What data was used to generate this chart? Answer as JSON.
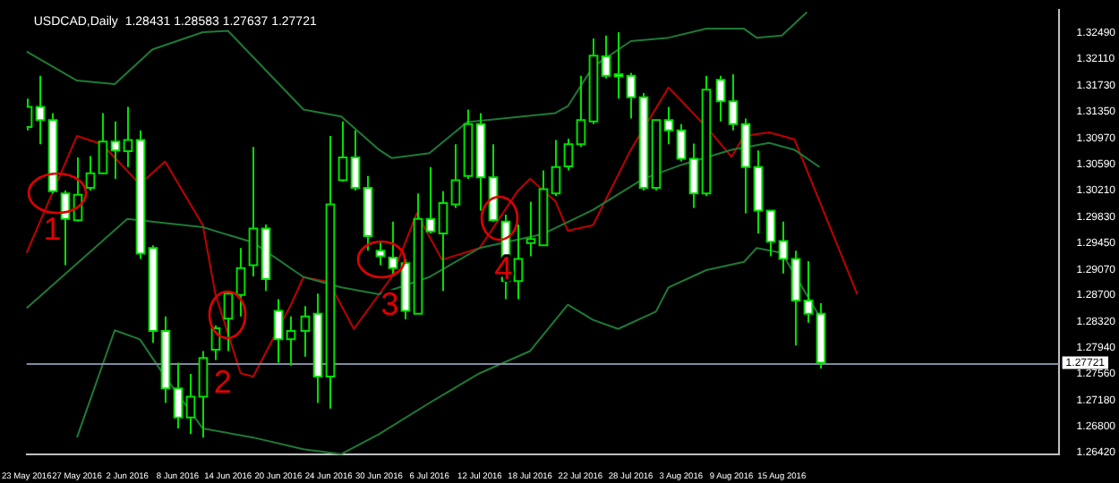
{
  "chart_data": {
    "type": "candlestick",
    "title": "USDCAD,Daily  1.28431 1.28583 1.27637 1.27721",
    "color": "#00e000",
    "categories": [
      "23 May 2016",
      null,
      null,
      null,
      "27 May 2016",
      null,
      null,
      null,
      "2 Jun 2016",
      null,
      null,
      null,
      "8 Jun 2016",
      null,
      null,
      null,
      "14 Jun 2016",
      null,
      null,
      null,
      "20 Jun 2016",
      null,
      null,
      null,
      "24 Jun 2016",
      null,
      null,
      null,
      "30 Jun 2016",
      null,
      null,
      null,
      "6 Jul 2016",
      null,
      null,
      null,
      "12 Jul 2016",
      null,
      null,
      null,
      "18 Jul 2016",
      null,
      null,
      null,
      "22 Jul 2016",
      null,
      null,
      null,
      "28 Jul 2016",
      null,
      null,
      null,
      "3 Aug 2016",
      null,
      null,
      null,
      "9 Aug 2016",
      null,
      null,
      null,
      "15 Aug 2016",
      null,
      null,
      null,
      null,
      null,
      null,
      null,
      null,
      null,
      null,
      null,
      null,
      null,
      null,
      null,
      null,
      null,
      null,
      null,
      null,
      null,
      null
    ],
    "ohlc": [
      [
        1.3113,
        1.3154,
        1.3108,
        1.3142
      ],
      [
        1.3142,
        1.3187,
        1.3088,
        1.3123
      ],
      [
        1.3123,
        1.3133,
        1.3017,
        1.302
      ],
      [
        1.3017,
        1.3021,
        1.2913,
        1.298
      ],
      [
        1.2978,
        1.3069,
        1.2976,
        1.3015
      ],
      [
        1.3025,
        1.3071,
        1.3021,
        1.3046
      ],
      [
        1.3046,
        1.3133,
        1.3045,
        1.3092
      ],
      [
        1.3092,
        1.3121,
        1.3038,
        1.3079
      ],
      [
        1.3078,
        1.3142,
        1.3055,
        1.3094
      ],
      [
        1.3094,
        1.3108,
        1.2922,
        1.293
      ],
      [
        1.2938,
        1.2942,
        1.2801,
        1.2818
      ],
      [
        1.2818,
        1.2839,
        1.2714,
        1.2735
      ],
      [
        1.2735,
        1.2772,
        1.2677,
        1.2693
      ],
      [
        1.2693,
        1.2756,
        1.2669,
        1.2723
      ],
      [
        1.2723,
        1.2789,
        1.2664,
        1.2779
      ],
      [
        1.2791,
        1.2826,
        1.2776,
        1.2822
      ],
      [
        1.2836,
        1.2876,
        1.2789,
        1.2872
      ],
      [
        1.287,
        1.2938,
        1.2839,
        1.2909
      ],
      [
        1.2913,
        1.3084,
        1.2897,
        1.2966
      ],
      [
        1.2966,
        1.2972,
        1.2876,
        1.2893
      ],
      [
        1.2847,
        1.2864,
        1.2772,
        1.2806
      ],
      [
        1.2806,
        1.2839,
        1.2768,
        1.2818
      ],
      [
        1.2818,
        1.2854,
        1.2781,
        1.2839
      ],
      [
        1.2843,
        1.2872,
        1.2714,
        1.2752
      ],
      [
        1.2752,
        1.31,
        1.2706,
        1.3001
      ],
      [
        1.3036,
        1.3121,
        1.3034,
        1.3069
      ],
      [
        1.3069,
        1.3108,
        1.3021,
        1.3025
      ],
      [
        1.3025,
        1.3042,
        1.2934,
        1.2955
      ],
      [
        1.2934,
        1.2947,
        1.2913,
        1.2926
      ],
      [
        1.2924,
        1.2976,
        1.2897,
        1.2909
      ],
      [
        1.2916,
        1.2922,
        1.2835,
        1.2847
      ],
      [
        1.2843,
        1.3017,
        1.2843,
        1.298
      ],
      [
        1.298,
        1.3055,
        1.2959,
        1.2962
      ],
      [
        1.2959,
        1.302,
        1.2876,
        1.3003
      ],
      [
        1.3001,
        1.3088,
        1.2996,
        1.3036
      ],
      [
        1.3042,
        1.3138,
        1.3038,
        1.3117
      ],
      [
        1.3117,
        1.3133,
        1.2992,
        1.304
      ],
      [
        1.304,
        1.3088,
        1.2976,
        1.2978
      ],
      [
        1.2976,
        1.2986,
        1.2864,
        1.289
      ],
      [
        1.289,
        1.2972,
        1.2864,
        1.2922
      ],
      [
        1.2945,
        1.3005,
        1.2926,
        1.2951
      ],
      [
        1.2942,
        1.305,
        1.2942,
        1.3023
      ],
      [
        1.3017,
        1.3094,
        1.3013,
        1.3055
      ],
      [
        1.3056,
        1.3096,
        1.305,
        1.3088
      ],
      [
        1.3088,
        1.3187,
        1.3084,
        1.3123
      ],
      [
        1.3121,
        1.3241,
        1.3117,
        1.3216
      ],
      [
        1.3215,
        1.3245,
        1.3183,
        1.3187
      ],
      [
        1.3189,
        1.325,
        1.3154,
        1.3186
      ],
      [
        1.3187,
        1.3191,
        1.3125,
        1.3156
      ],
      [
        1.3156,
        1.3162,
        1.3021,
        1.3025
      ],
      [
        1.3025,
        1.3123,
        1.3021,
        1.3123
      ],
      [
        1.3123,
        1.3142,
        1.3088,
        1.3108
      ],
      [
        1.3108,
        1.3117,
        1.3063,
        1.3067
      ],
      [
        1.3067,
        1.3089,
        1.2996,
        1.3017
      ],
      [
        1.3017,
        1.3187,
        1.3013,
        1.3167
      ],
      [
        1.3181,
        1.3187,
        1.3121,
        1.315
      ],
      [
        1.315,
        1.3189,
        1.3108,
        1.3117
      ],
      [
        1.3117,
        1.3125,
        1.2988,
        1.3055
      ],
      [
        1.3055,
        1.3079,
        1.2959,
        1.2992
      ],
      [
        1.2992,
        1.2992,
        1.2926,
        1.2947
      ],
      [
        1.2948,
        1.2976,
        1.2901,
        1.2922
      ],
      [
        1.2922,
        1.2934,
        1.2797,
        1.2862
      ],
      [
        1.2862,
        1.2919,
        1.283,
        1.2843
      ],
      [
        1.28431,
        1.28583,
        1.27637,
        1.27721
      ],
      null,
      null,
      null,
      null,
      null,
      null,
      null,
      null,
      null,
      null,
      null,
      null,
      null,
      null,
      null,
      null,
      null,
      null,
      null
    ],
    "colors": [
      "#000000",
      "#ffffff",
      "#ffffff",
      "#ffffff",
      "#000000",
      "#000000",
      "#000000",
      "#ffffff",
      "#000000",
      "#ffffff",
      "#ffffff",
      "#ffffff",
      "#ffffff",
      "#000000",
      "#000000",
      "#000000",
      "#000000",
      "#000000",
      "#000000",
      "#ffffff",
      "#ffffff",
      "#000000",
      "#000000",
      "#ffffff",
      "#000000",
      "#000000",
      "#ffffff",
      "#ffffff",
      "#ffffff",
      "#ffffff",
      "#ffffff",
      "#000000",
      "#ffffff",
      "#000000",
      "#000000",
      "#000000",
      "#ffffff",
      "#ffffff",
      "#ffffff",
      "#000000",
      "#000000",
      "#000000",
      "#000000",
      "#000000",
      "#000000",
      "#000000",
      "#ffffff",
      "#ffffff",
      "#ffffff",
      "#ffffff",
      "#000000",
      "#ffffff",
      "#ffffff",
      "#ffffff",
      "#000000",
      "#ffffff",
      "#ffffff",
      "#ffffff",
      "#ffffff",
      "#ffffff",
      "#ffffff",
      "#ffffff",
      "#ffffff",
      "#ffffff",
      null,
      null,
      null,
      null,
      null,
      null,
      null,
      null,
      null,
      null,
      null,
      null,
      null,
      null,
      null,
      null,
      null,
      null,
      null
    ],
    "series": [
      {
        "type": "line",
        "color": "#1e7a36",
        "values": [
          1.3222,
          null,
          null,
          null,
          1.318,
          null,
          null,
          1.3175,
          null,
          null,
          1.3225,
          null,
          null,
          null,
          1.325,
          null,
          1.3252,
          null,
          null,
          1.3195,
          null,
          null,
          1.3138,
          null,
          null,
          1.3128,
          null,
          null,
          1.308,
          1.3068,
          null,
          null,
          1.3075,
          null,
          null,
          1.312,
          null,
          null,
          null,
          null,
          null,
          null,
          1.3133,
          1.3143,
          null,
          1.32,
          null,
          null,
          1.3237,
          null,
          null,
          1.3242,
          null,
          null,
          1.3255,
          null,
          null,
          1.3255,
          1.3242,
          null,
          1.3245,
          null,
          1.3279,
          null,
          null,
          null,
          null,
          null,
          null,
          null,
          null,
          null,
          null,
          null,
          null,
          null,
          null,
          null,
          null,
          null,
          null,
          null,
          null
        ]
      },
      {
        "type": "line",
        "color": "#1e7a36",
        "values": [
          1.2851,
          null,
          null,
          null,
          null,
          null,
          null,
          null,
          1.298,
          null,
          null,
          null,
          null,
          null,
          1.2968,
          null,
          null,
          null,
          1.2946,
          null,
          null,
          null,
          1.2896,
          null,
          null,
          1.2881,
          null,
          null,
          1.2871,
          null,
          null,
          null,
          1.2896,
          null,
          null,
          null,
          1.2938,
          null,
          null,
          null,
          null,
          1.2958,
          null,
          null,
          null,
          1.2993,
          null,
          null,
          null,
          1.3038,
          null,
          null,
          1.3058,
          null,
          null,
          null,
          1.308,
          null,
          null,
          1.309,
          null,
          1.308,
          null,
          1.3055,
          null,
          null,
          null,
          null,
          null,
          null,
          null,
          null,
          null,
          null,
          null,
          null,
          null,
          null,
          null,
          null,
          null,
          null,
          null
        ]
      },
      {
        "type": "line",
        "color": "#1e7a36",
        "values": [
          null,
          null,
          null,
          null,
          1.2664,
          null,
          null,
          1.2819,
          null,
          1.2806,
          null,
          1.2752,
          null,
          null,
          1.2677,
          null,
          null,
          null,
          1.2664,
          null,
          null,
          null,
          1.2647,
          null,
          null,
          1.264,
          null,
          null,
          1.2669,
          null,
          null,
          null,
          1.2714,
          null,
          null,
          null,
          1.2757,
          null,
          null,
          null,
          1.2789,
          null,
          null,
          1.2856,
          null,
          1.2834,
          null,
          1.2821,
          null,
          null,
          1.2846,
          1.2881,
          null,
          null,
          1.2906,
          null,
          null,
          1.2918,
          1.2938,
          null,
          1.2931,
          null,
          null,
          1.2839,
          null,
          null,
          null,
          null,
          null,
          null,
          null,
          null,
          null,
          null,
          null,
          null,
          null,
          null,
          null,
          null,
          null,
          null,
          null
        ]
      },
      {
        "type": "line",
        "color": "#c00000",
        "values": [
          1.2931,
          null,
          null,
          null,
          1.31,
          null,
          1.3088,
          null,
          null,
          1.303,
          null,
          1.3063,
          null,
          null,
          1.2971,
          1.2871,
          null,
          1.2757,
          1.2752,
          null,
          null,
          1.2856,
          1.2896,
          null,
          1.2889,
          null,
          1.2821,
          null,
          null,
          1.2896,
          null,
          1.2988,
          null,
          1.2921,
          null,
          null,
          1.2938,
          null,
          null,
          1.302,
          1.3038,
          null,
          1.3006,
          1.2963,
          null,
          1.2971,
          null,
          null,
          1.308,
          null,
          null,
          1.317,
          null,
          null,
          1.3113,
          null,
          1.307,
          1.31,
          null,
          1.3105,
          null,
          1.3095,
          null,
          null,
          null,
          null,
          1.2871,
          null,
          null,
          null,
          null,
          null,
          null,
          null,
          null,
          null,
          null,
          null,
          null,
          null,
          null,
          null,
          null
        ]
      }
    ],
    "ylim": [
      1.2639,
      1.3282
    ],
    "yticks": [
      {
        "value": 1.3249,
        "label": "1.32490"
      },
      {
        "value": 1.3211,
        "label": "1.32110"
      },
      {
        "value": 1.3173,
        "label": "1.31730"
      },
      {
        "value": 1.3135,
        "label": "1.31350"
      },
      {
        "value": 1.3097,
        "label": "1.30970"
      },
      {
        "value": 1.3059,
        "label": "1.30590"
      },
      {
        "value": 1.3021,
        "label": "1.30210"
      },
      {
        "value": 1.2983,
        "label": "1.29830"
      },
      {
        "value": 1.2945,
        "label": "1.29450"
      },
      {
        "value": 1.2907,
        "label": "1.29070"
      },
      {
        "value": 1.287,
        "label": "1.28700"
      },
      {
        "value": 1.2832,
        "label": "1.28320"
      },
      {
        "value": 1.2794,
        "label": "1.27940"
      },
      {
        "value": 1.2756,
        "label": "1.27560"
      },
      {
        "value": 1.2718,
        "label": "1.27180"
      },
      {
        "value": 1.268,
        "label": "1.26800"
      },
      {
        "value": 1.2642,
        "label": "1.26420"
      }
    ],
    "ref_lines": [
      {
        "axis": "y",
        "value": 1.27721,
        "label": "1.27721",
        "color": "#7f8ba0"
      }
    ],
    "annotations": [
      "1",
      "2",
      "3",
      "4"
    ],
    "grid": false,
    "legend": false,
    "marker": "none",
    "line_style": "solid"
  }
}
